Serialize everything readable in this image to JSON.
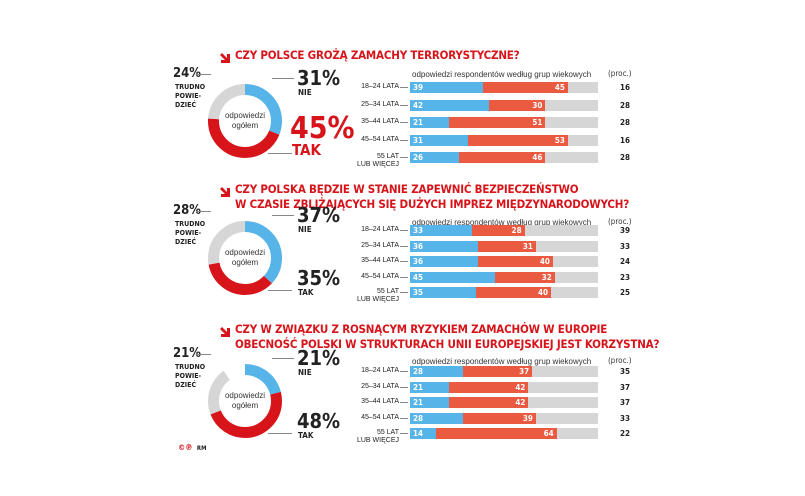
{
  "colors": {
    "nie": "#56b4e9",
    "tak_donut": "#d7141a",
    "tak_bar": "#ea5a40",
    "trudno": "#d6d6d6",
    "title": "#d7141a"
  },
  "common": {
    "bars_header": "odpowiedzi respondentów według grup wiekowych",
    "unit": "(proc.)",
    "donut_center": [
      "odpowiedzi",
      "ogółem"
    ],
    "trudno_label": [
      "TRUDNO",
      "POWIE-",
      "DZIEĆ"
    ],
    "nie_label": "NIE",
    "tak_label": "TAK",
    "age_groups": [
      [
        "18–24 LATA"
      ],
      [
        "25–34 LATA"
      ],
      [
        "35–44 LATA"
      ],
      [
        "45–54 LATA"
      ],
      [
        "55 LAT",
        "LUB WIĘCEJ"
      ]
    ]
  },
  "credit": {
    "logo": "©℗",
    "text": "RM"
  },
  "chart_data": [
    {
      "type": "bar",
      "title": [
        "CZY POLSCE GROŻĄ ZAMACHY TERRORYSTYCZNE?"
      ],
      "overall": {
        "nie": 31,
        "tak": 45,
        "trudno": 24,
        "tak_emphasized": true
      },
      "categories": [
        "18–24 LATA",
        "25–34 LATA",
        "35–44 LATA",
        "45–54 LATA",
        "55 LAT LUB WIĘCEJ"
      ],
      "series": [
        {
          "name": "NIE",
          "values": [
            39,
            42,
            21,
            31,
            26
          ]
        },
        {
          "name": "TAK",
          "values": [
            45,
            30,
            51,
            53,
            46
          ]
        },
        {
          "name": "TRUDNO POWIEDZIEĆ",
          "values": [
            16,
            28,
            28,
            16,
            28
          ]
        }
      ]
    },
    {
      "type": "bar",
      "title": [
        "CZY POLSKA BĘDZIE W STANIE ZAPEWNIĆ BEZPIECZEŃSTWO",
        "W CZASIE ZBLIŻAJĄCYCH SIĘ DUŻYCH IMPREZ MIĘDZYNARODOWYCH?"
      ],
      "overall": {
        "nie": 37,
        "tak": 35,
        "trudno": 28,
        "tak_emphasized": false
      },
      "categories": [
        "18–24 LATA",
        "25–34 LATA",
        "35–44 LATA",
        "45–54 LATA",
        "55 LAT LUB WIĘCEJ"
      ],
      "series": [
        {
          "name": "NIE",
          "values": [
            33,
            36,
            36,
            45,
            35
          ]
        },
        {
          "name": "TAK",
          "values": [
            28,
            31,
            40,
            32,
            40
          ]
        },
        {
          "name": "TRUDNO POWIEDZIEĆ",
          "values": [
            39,
            33,
            24,
            23,
            25
          ]
        }
      ]
    },
    {
      "type": "bar",
      "title": [
        "CZY W ZWIĄZKU Z ROSNĄCYM RYZYKIEM ZAMACHÓW W EUROPIE",
        "OBECNOŚĆ POLSKI W STRUKTURACH UNII EUROPEJSKIEJ JEST KORZYSTNA?"
      ],
      "overall": {
        "nie": 21,
        "tak": 48,
        "trudno": 21,
        "tak_emphasized": false
      },
      "categories": [
        "18–24 LATA",
        "25–34 LATA",
        "35–44 LATA",
        "45–54 LATA",
        "55 LAT LUB WIĘCEJ"
      ],
      "series": [
        {
          "name": "NIE",
          "values": [
            28,
            21,
            21,
            28,
            14
          ]
        },
        {
          "name": "TAK",
          "values": [
            37,
            42,
            42,
            39,
            64
          ]
        },
        {
          "name": "TRUDNO POWIEDZIEĆ",
          "values": [
            35,
            37,
            37,
            33,
            22
          ]
        }
      ]
    }
  ]
}
